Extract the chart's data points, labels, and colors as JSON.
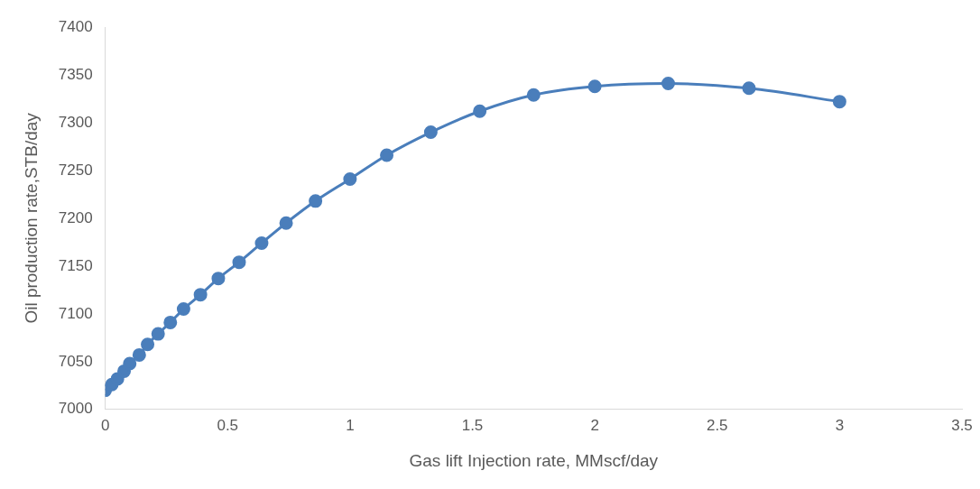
{
  "chart_data": {
    "type": "line",
    "xlabel": "Gas lift Injection rate, MMscf/day",
    "ylabel": "Oil production rate,STB/day",
    "x": [
      0,
      0.027,
      0.05,
      0.077,
      0.1,
      0.139,
      0.173,
      0.216,
      0.266,
      0.32,
      0.389,
      0.462,
      0.547,
      0.639,
      0.739,
      0.859,
      1.0,
      1.15,
      1.33,
      1.53,
      1.75,
      2.0,
      2.3,
      2.63,
      3.0
    ],
    "series": [
      {
        "color": "#4a7ebb",
        "values": [
          7020,
          7026,
          7032,
          7040,
          7048,
          7057,
          7068,
          7079,
          7091,
          7105,
          7120,
          7137,
          7154,
          7174,
          7195,
          7218,
          7241,
          7266,
          7290,
          7312,
          7329,
          7338,
          7341,
          7336,
          7322
        ]
      }
    ],
    "xlim": [
      0,
      3.5
    ],
    "xticks": [
      0,
      0.5,
      1,
      1.5,
      2,
      2.5,
      3,
      3.5
    ],
    "ylim": [
      7000,
      7400
    ],
    "yticks": [
      7000,
      7050,
      7100,
      7150,
      7200,
      7250,
      7300,
      7350,
      7400
    ],
    "grid": false,
    "legend": false,
    "marker": "circle",
    "line_style": "solid"
  }
}
